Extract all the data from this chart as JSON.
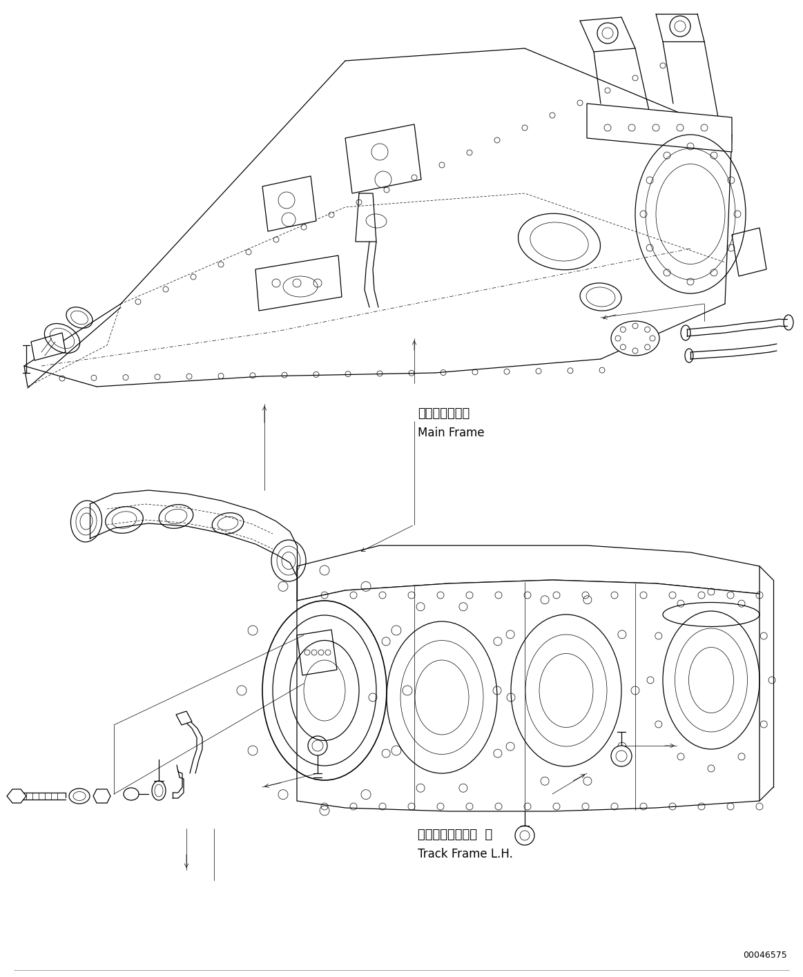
{
  "background_color": "#ffffff",
  "line_color": "#000000",
  "figure_width": 11.63,
  "figure_height": 14.15,
  "dpi": 100,
  "label_main_frame_jp": "メインフレーム",
  "label_main_frame_en": "Main Frame",
  "label_track_frame_jp": "トラックフレーム  左",
  "label_track_frame_en": "Track Frame L.H.",
  "part_number": "00046575",
  "lw_main": 0.9,
  "lw_thin": 0.5,
  "lw_thick": 1.2
}
